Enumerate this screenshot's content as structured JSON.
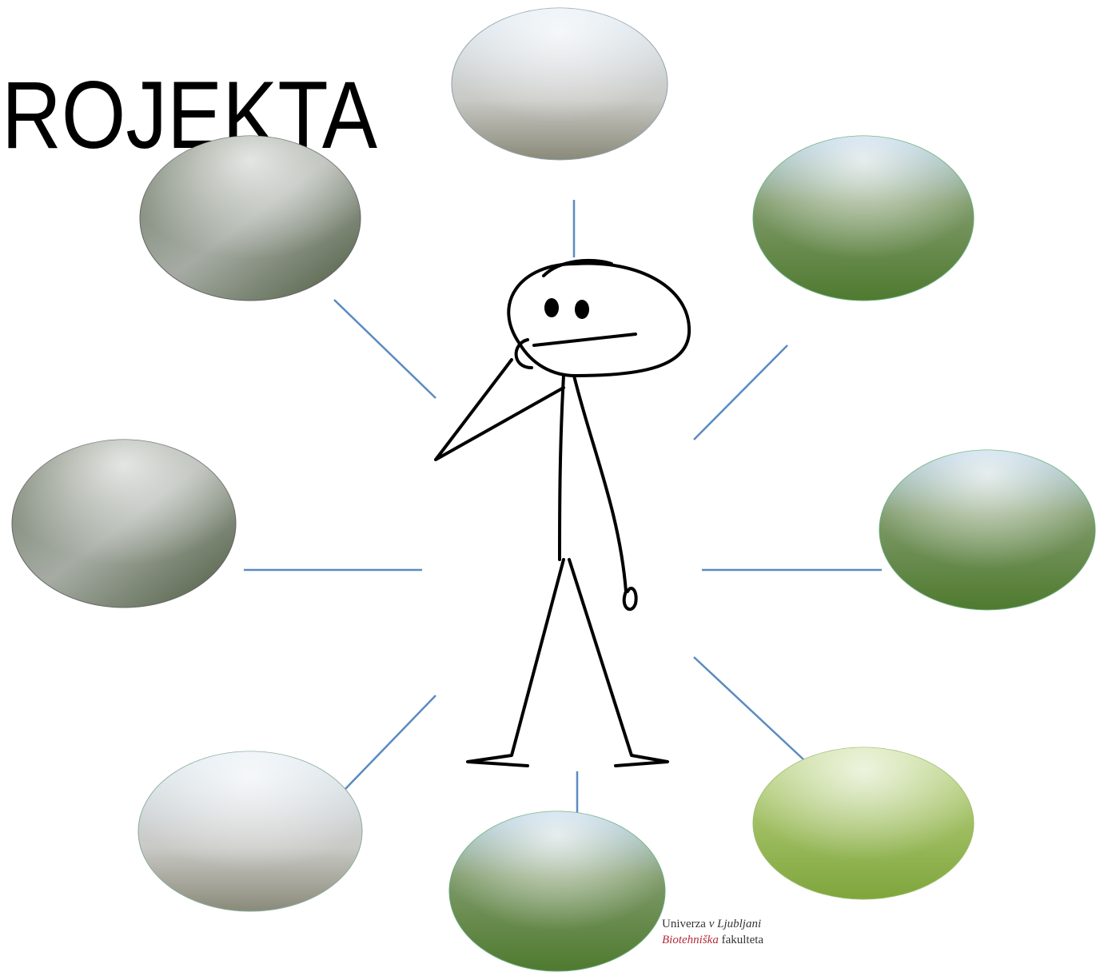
{
  "header": {
    "title": "ROJEKTA"
  },
  "logo": {
    "university": "Univerza",
    "city": "v Ljubljani",
    "faculty_name": "Biotehniška",
    "faculty_word": "fakulteta"
  }
}
